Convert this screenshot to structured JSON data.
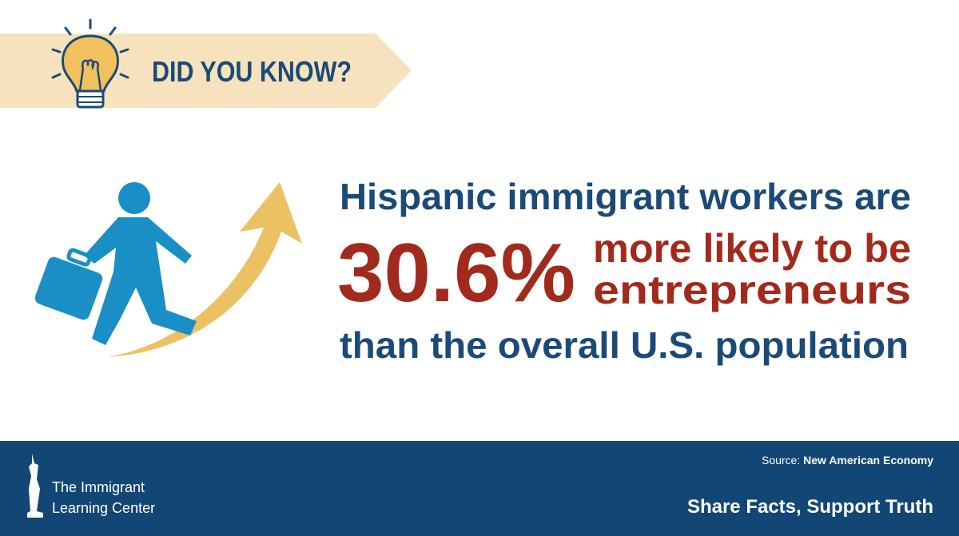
{
  "banner": {
    "label": "DID YOU KNOW?"
  },
  "fact": {
    "line1": "Hispanic immigrant workers are",
    "stat": "30.6%",
    "line2a": "more likely to be",
    "line2b": "entrepreneurs",
    "line3": "than the overall U.S. population"
  },
  "footer": {
    "org_line1": "The Immigrant",
    "org_line2": "Learning Center",
    "source_label": "Source:",
    "source_name": "New American Economy",
    "tagline": "Share Facts, Support Truth"
  }
}
